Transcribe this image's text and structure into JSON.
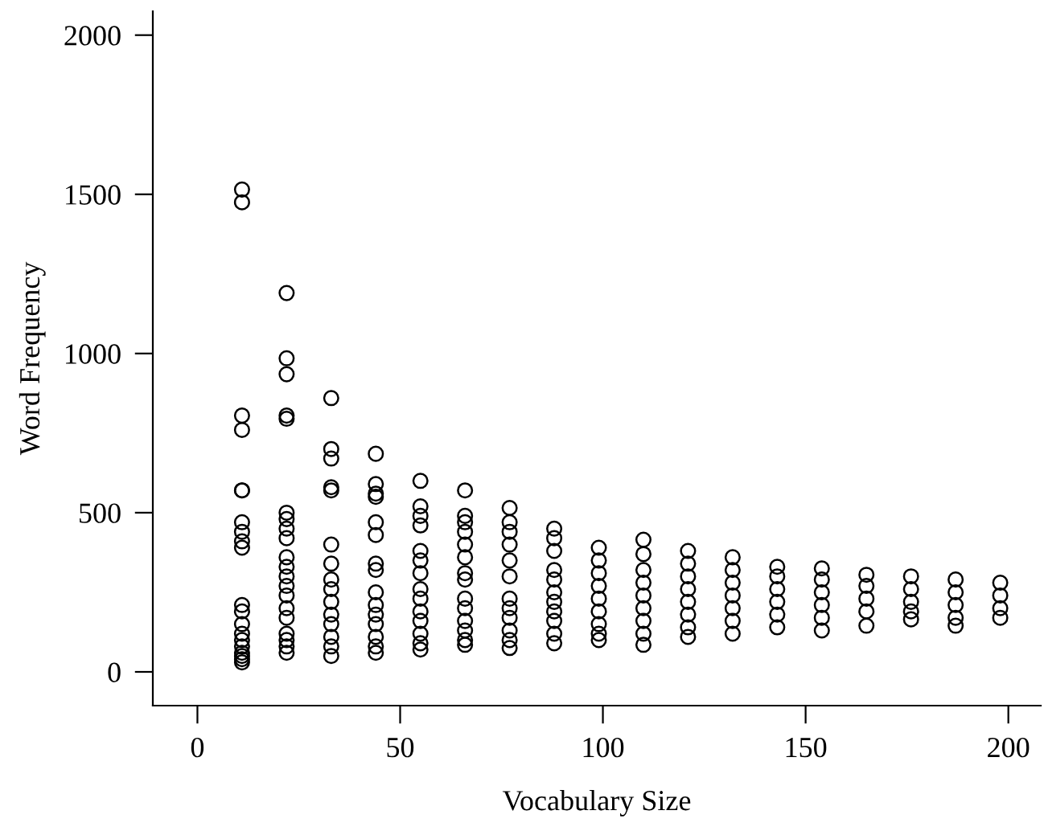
{
  "chart_data": {
    "type": "scatter",
    "xlabel": "Vocabulary Size",
    "ylabel": "Word Frequency",
    "marker": "circle",
    "xlim": [
      -11,
      208
    ],
    "ylim": [
      -106,
      2075
    ],
    "xticks": [
      0,
      50,
      100,
      150,
      200
    ],
    "yticks": [
      0,
      500,
      1000,
      1500,
      2000
    ],
    "series": [
      {
        "color": "#000000",
        "x": [
          11,
          11,
          11,
          11,
          11,
          11,
          11,
          11,
          11,
          11,
          11,
          11,
          11,
          11,
          11,
          11,
          11,
          11,
          11,
          11,
          22,
          22,
          22,
          22,
          22,
          22,
          22,
          22,
          22,
          22,
          22,
          22,
          22,
          22,
          22,
          22,
          22,
          22,
          22,
          22,
          33,
          33,
          33,
          33,
          33,
          33,
          33,
          33,
          33,
          33,
          33,
          33,
          33,
          33,
          33,
          44,
          44,
          44,
          44,
          44,
          44,
          44,
          44,
          44,
          44,
          44,
          44,
          44,
          44,
          44,
          55,
          55,
          55,
          55,
          55,
          55,
          55,
          55,
          55,
          55,
          55,
          55,
          55,
          55,
          66,
          66,
          66,
          66,
          66,
          66,
          66,
          66,
          66,
          66,
          66,
          66,
          66,
          66,
          77,
          77,
          77,
          77,
          77,
          77,
          77,
          77,
          77,
          77,
          77,
          77,
          88,
          88,
          88,
          88,
          88,
          88,
          88,
          88,
          88,
          88,
          88,
          99,
          99,
          99,
          99,
          99,
          99,
          99,
          99,
          99,
          110,
          110,
          110,
          110,
          110,
          110,
          110,
          110,
          110,
          121,
          121,
          121,
          121,
          121,
          121,
          121,
          121,
          132,
          132,
          132,
          132,
          132,
          132,
          132,
          143,
          143,
          143,
          143,
          143,
          143,
          154,
          154,
          154,
          154,
          154,
          154,
          165,
          165,
          165,
          165,
          165,
          176,
          176,
          176,
          176,
          176,
          187,
          187,
          187,
          187,
          187,
          198,
          198,
          198,
          198
        ],
        "values": [
          1515,
          1475,
          805,
          760,
          570,
          570,
          470,
          440,
          410,
          390,
          210,
          190,
          150,
          120,
          100,
          80,
          60,
          50,
          40,
          30,
          1190,
          985,
          935,
          805,
          795,
          500,
          480,
          450,
          420,
          360,
          330,
          300,
          270,
          240,
          200,
          170,
          120,
          100,
          80,
          60,
          860,
          700,
          670,
          580,
          570,
          400,
          340,
          290,
          260,
          220,
          180,
          150,
          110,
          80,
          50,
          685,
          590,
          560,
          550,
          470,
          430,
          340,
          320,
          250,
          210,
          180,
          150,
          110,
          80,
          60,
          600,
          520,
          490,
          460,
          380,
          350,
          310,
          260,
          230,
          190,
          160,
          120,
          90,
          70,
          570,
          490,
          470,
          440,
          400,
          360,
          310,
          290,
          230,
          200,
          160,
          130,
          100,
          85,
          515,
          470,
          440,
          400,
          350,
          300,
          230,
          200,
          170,
          130,
          100,
          75,
          450,
          420,
          380,
          320,
          290,
          250,
          220,
          190,
          160,
          120,
          90,
          390,
          350,
          310,
          270,
          230,
          190,
          150,
          120,
          100,
          415,
          370,
          320,
          280,
          240,
          200,
          160,
          120,
          85,
          380,
          340,
          300,
          260,
          220,
          180,
          140,
          110,
          360,
          320,
          280,
          240,
          200,
          160,
          120,
          330,
          300,
          260,
          220,
          180,
          140,
          325,
          290,
          250,
          210,
          170,
          130,
          305,
          270,
          230,
          190,
          145,
          300,
          260,
          220,
          190,
          165,
          290,
          250,
          210,
          170,
          145,
          280,
          240,
          200,
          170
        ]
      }
    ]
  }
}
